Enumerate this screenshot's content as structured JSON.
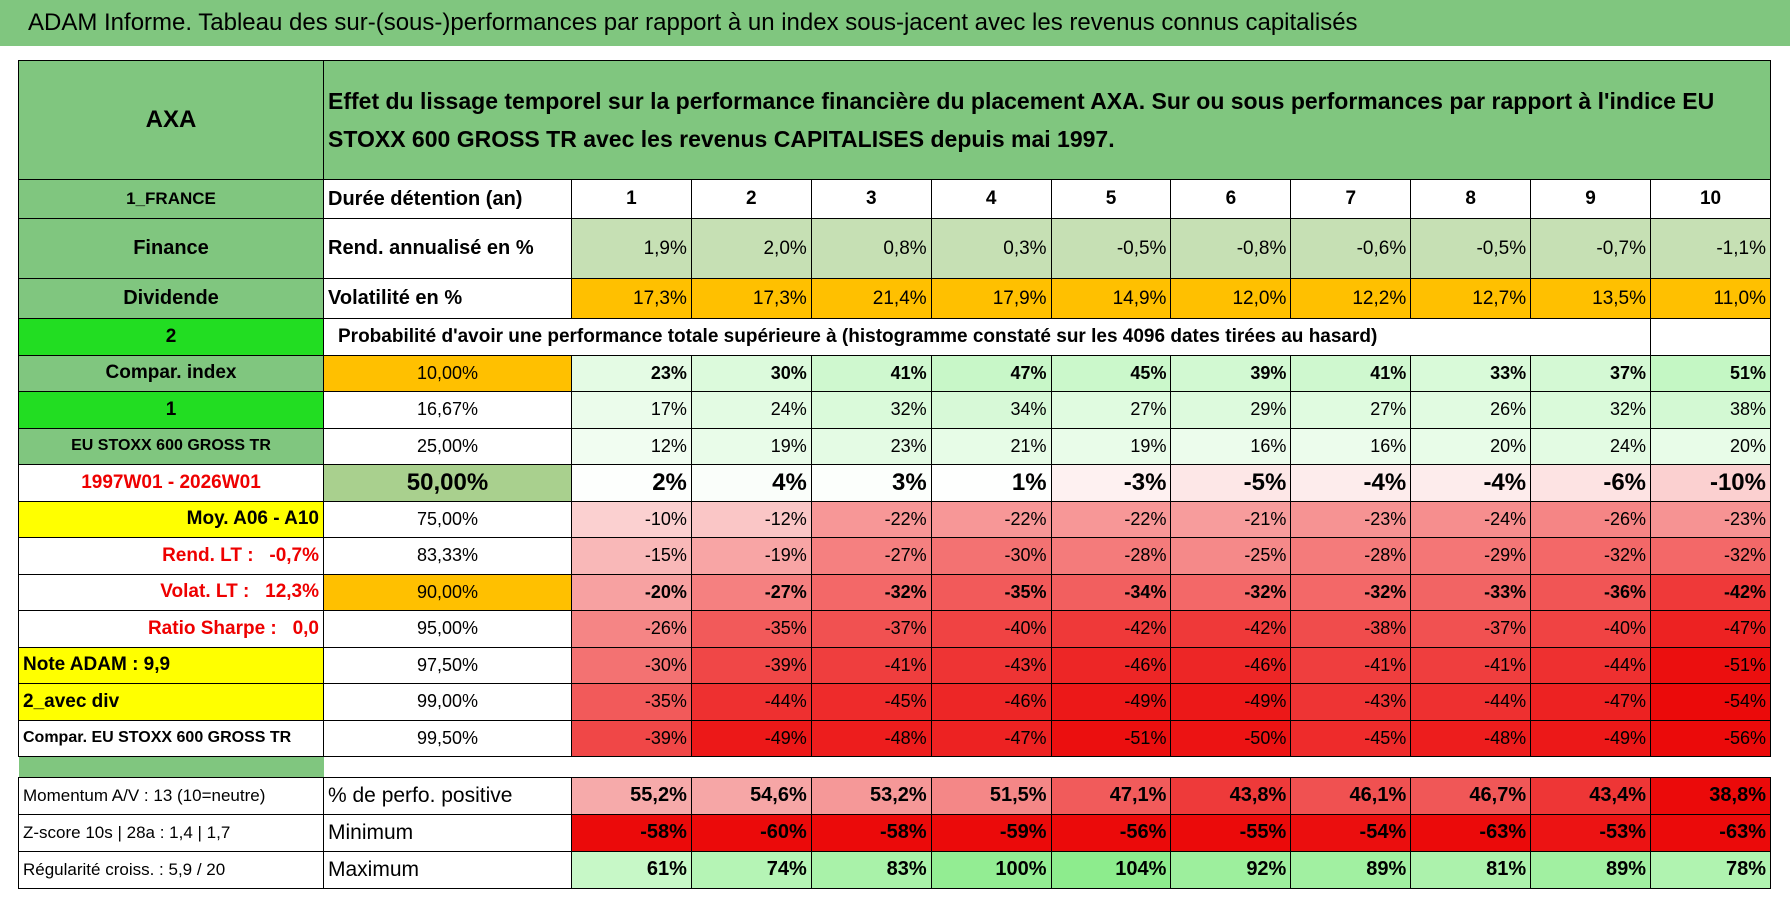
{
  "title": "ADAM Informe. Tableau des sur-(sous-)performances par rapport à un index sous-jacent avec les revenus connus capitalisés",
  "header": {
    "stock": "AXA",
    "description": "Effet du lissage temporel sur la performance financière du placement AXA. Sur ou sous performances par rapport à l'indice EU STOXX 600 GROSS TR avec les revenus CAPITALISES depuis mai 1997."
  },
  "top_rows": [
    [
      "1_FRANCE",
      "Durée détention (an)",
      "1",
      "2",
      "3",
      "4",
      "5",
      "6",
      "7",
      "8",
      "9",
      "10"
    ],
    [
      "Finance",
      "Rend. annualisé en %",
      "1,9%",
      "2,0%",
      "0,8%",
      "0,3%",
      "-0,5%",
      "-0,8%",
      "-0,6%",
      "-0,5%",
      "-0,7%",
      "-1,1%"
    ],
    [
      "Dividende",
      "Volatilité en %",
      "17,3%",
      "17,3%",
      "21,4%",
      "17,9%",
      "14,9%",
      "12,0%",
      "12,2%",
      "12,7%",
      "13,5%",
      "11,0%"
    ]
  ],
  "probability": {
    "left": "2",
    "text": "Probabilité d'avoir une performance totale supérieure à (histogramme constaté sur les 4096 dates tirées au hasard)"
  },
  "threshold_rows": [
    [
      "Compar. index",
      "10,00%",
      "23%",
      "30%",
      "41%",
      "47%",
      "45%",
      "39%",
      "41%",
      "33%",
      "37%",
      "51%"
    ],
    [
      "1",
      "16,67%",
      "17%",
      "24%",
      "32%",
      "34%",
      "27%",
      "29%",
      "27%",
      "26%",
      "32%",
      "38%"
    ],
    [
      "EU STOXX 600 GROSS TR",
      "25,00%",
      "12%",
      "19%",
      "23%",
      "21%",
      "19%",
      "16%",
      "16%",
      "20%",
      "24%",
      "20%"
    ],
    [
      "1997W01 - 2026W01",
      "50,00%",
      "2%",
      "4%",
      "3%",
      "1%",
      "-3%",
      "-5%",
      "-4%",
      "-4%",
      "-6%",
      "-10%"
    ],
    [
      "Moy. A06 - A10",
      "75,00%",
      "-10%",
      "-12%",
      "-22%",
      "-22%",
      "-22%",
      "-21%",
      "-23%",
      "-24%",
      "-26%",
      "-23%"
    ],
    [
      "Rend. LT :   -0,7%",
      "83,33%",
      "-15%",
      "-19%",
      "-27%",
      "-30%",
      "-28%",
      "-25%",
      "-28%",
      "-29%",
      "-32%",
      "-32%"
    ],
    [
      "Volat. LT :   12,3%",
      "90,00%",
      "-20%",
      "-27%",
      "-32%",
      "-35%",
      "-34%",
      "-32%",
      "-32%",
      "-33%",
      "-36%",
      "-42%"
    ],
    [
      "Ratio Sharpe :   0,0",
      "95,00%",
      "-26%",
      "-35%",
      "-37%",
      "-40%",
      "-42%",
      "-42%",
      "-38%",
      "-37%",
      "-40%",
      "-47%"
    ],
    [
      "Note ADAM : 9,9",
      "97,50%",
      "-30%",
      "-39%",
      "-41%",
      "-43%",
      "-46%",
      "-46%",
      "-41%",
      "-41%",
      "-44%",
      "-51%"
    ],
    [
      "2_avec div",
      "99,00%",
      "-35%",
      "-44%",
      "-45%",
      "-46%",
      "-49%",
      "-49%",
      "-43%",
      "-44%",
      "-47%",
      "-54%"
    ],
    [
      "Compar. EU STOXX 600 GROSS TR",
      "99,50%",
      "-39%",
      "-49%",
      "-48%",
      "-47%",
      "-51%",
      "-50%",
      "-45%",
      "-48%",
      "-49%",
      "-56%"
    ]
  ],
  "bottom_rows": [
    [
      "Momentum A/V : 13 (10=neutre)",
      "% de perfo. positive",
      "55,2%",
      "54,6%",
      "53,2%",
      "51,5%",
      "47,1%",
      "43,8%",
      "46,1%",
      "46,7%",
      "43,4%",
      "38,8%"
    ],
    [
      "Z-score 10s | 28a : 1,4 | 1,7",
      "Minimum",
      "-58%",
      "-60%",
      "-58%",
      "-59%",
      "-56%",
      "-55%",
      "-54%",
      "-63%",
      "-53%",
      "-63%"
    ],
    [
      "Régularité croiss. : 5,9 / 20",
      "Maximum",
      "61%",
      "74%",
      "83%",
      "100%",
      "104%",
      "92%",
      "89%",
      "81%",
      "89%",
      "78%"
    ]
  ]
}
